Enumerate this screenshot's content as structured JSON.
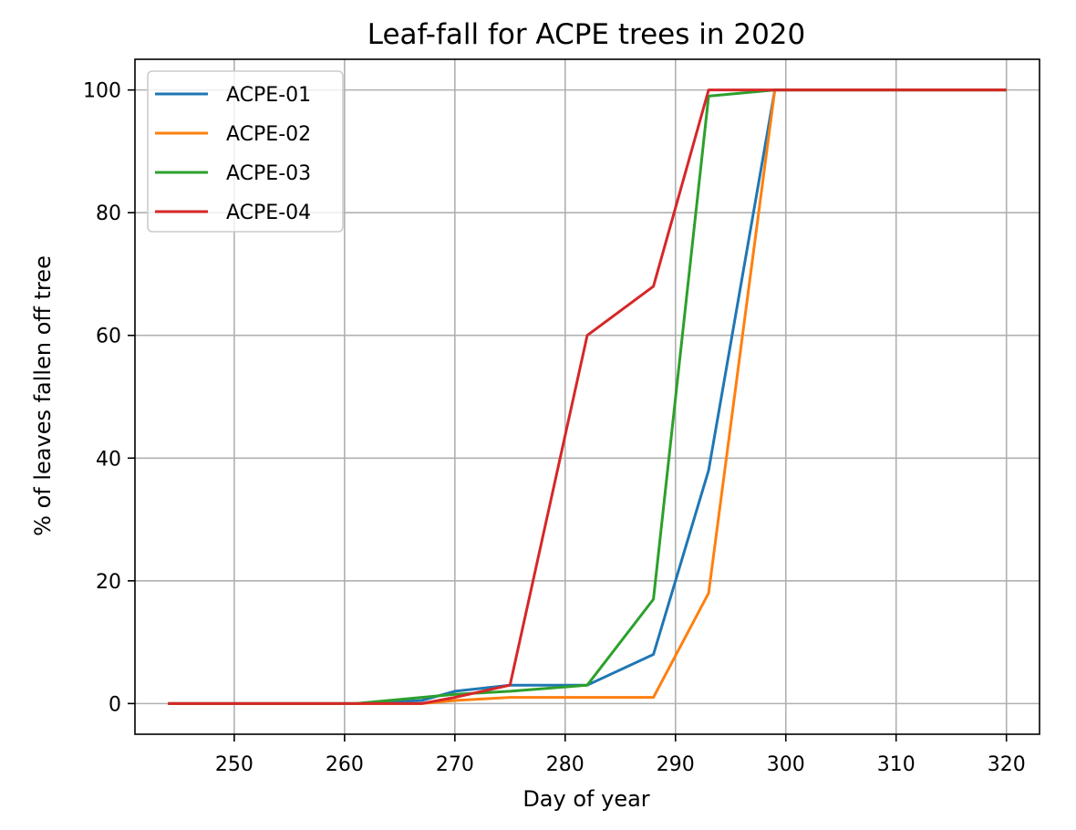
{
  "chart_data": {
    "type": "line",
    "title": "Leaf-fall for ACPE trees in 2020",
    "xlabel": "Day of year",
    "ylabel": "% of leaves fallen off tree",
    "xlim": [
      241,
      323
    ],
    "ylim": [
      -5,
      105
    ],
    "xticks": [
      250,
      260,
      270,
      280,
      290,
      300,
      310,
      320
    ],
    "yticks": [
      0,
      20,
      40,
      60,
      80,
      100
    ],
    "grid": true,
    "legend_position": "top-left",
    "series": [
      {
        "name": "ACPE-01",
        "color": "#1f77b4",
        "x": [
          244,
          261,
          267,
          270,
          275,
          282,
          288,
          293,
          299,
          320
        ],
        "y": [
          0,
          0,
          0.5,
          2,
          3,
          3,
          8,
          38,
          100,
          100
        ]
      },
      {
        "name": "ACPE-02",
        "color": "#ff7f0e",
        "x": [
          244,
          261,
          267,
          270,
          275,
          282,
          288,
          293,
          299,
          320
        ],
        "y": [
          0,
          0,
          0,
          0.5,
          1,
          1,
          1,
          18,
          100,
          100
        ]
      },
      {
        "name": "ACPE-03",
        "color": "#2ca02c",
        "x": [
          244,
          261,
          267,
          270,
          275,
          282,
          288,
          293,
          299,
          320
        ],
        "y": [
          0,
          0,
          1,
          1.5,
          2,
          3,
          17,
          99,
          100,
          100
        ]
      },
      {
        "name": "ACPE-04",
        "color": "#d62728",
        "x": [
          244,
          261,
          267,
          270,
          275,
          282,
          288,
          293,
          299,
          320
        ],
        "y": [
          0,
          0,
          0,
          1,
          3,
          60,
          68,
          100,
          100,
          100
        ]
      }
    ]
  }
}
